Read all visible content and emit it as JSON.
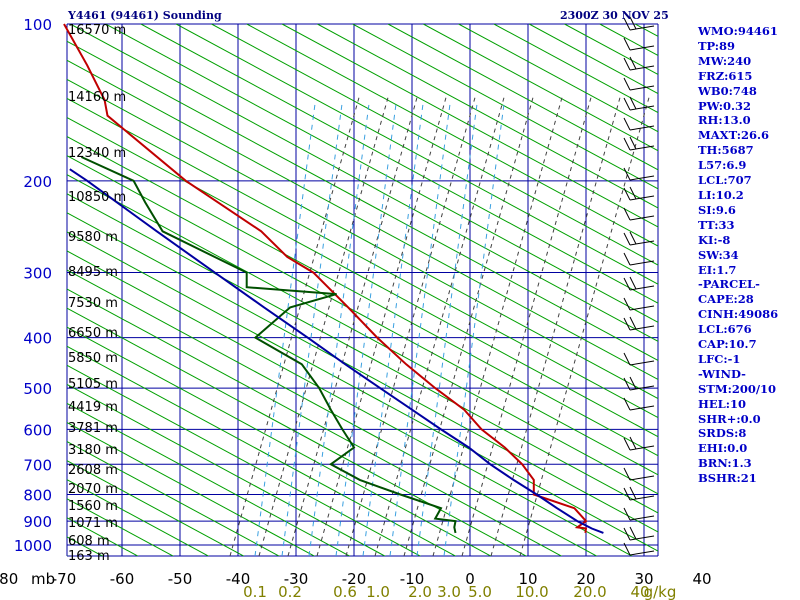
{
  "header": {
    "station_title": "Y4461 (94461) Sounding",
    "valid_time": "2300Z 30 NOV 25"
  },
  "chart_data": {
    "type": "line",
    "title": "Y4461 (94461) Sounding",
    "subtitle": "2300Z 30 NOV 25",
    "pressure_axis_label": "mb",
    "pressure_levels": [
      100,
      200,
      300,
      400,
      500,
      600,
      700,
      800,
      900,
      1000
    ],
    "temperature_ticks": [
      -80,
      -70,
      -60,
      -50,
      -40,
      -30,
      -20,
      -10,
      0,
      10,
      20,
      30,
      40
    ],
    "mixing_ratio_labels": [
      "0.1",
      "0.2",
      "0.6",
      "1.0",
      "2.0",
      "3.0",
      "5.0",
      "10.0",
      "20.0",
      "40",
      "g/kg"
    ],
    "height_labels": [
      "16570 m",
      "14160 m",
      "12340 m",
      "10850 m",
      "9580 m",
      "8495 m",
      "7530 m",
      "6650 m",
      "5850 m",
      "5105 m",
      "4419 m",
      "3781 m",
      "3180 m",
      "2608 m",
      "2070 m",
      "1560 m",
      "1071 m",
      "608 m",
      "163 m"
    ],
    "series": [
      {
        "color": "#c00000",
        "points": [
          [
            948,
            19.9
          ],
          [
            930,
            20.0
          ],
          [
            925,
            18.5
          ],
          [
            900,
            20.0
          ],
          [
            850,
            18.0
          ],
          [
            800,
            11.0
          ],
          [
            750,
            11.0
          ],
          [
            700,
            9.0
          ],
          [
            650,
            6.0
          ],
          [
            600,
            2.0
          ],
          [
            550,
            -1.0
          ],
          [
            500,
            -6.0
          ],
          [
            450,
            -11.0
          ],
          [
            400,
            -16.0
          ],
          [
            350,
            -21.0
          ],
          [
            300,
            -27.0
          ],
          [
            280,
            -31.5
          ],
          [
            250,
            -36.0
          ],
          [
            200,
            -49.0
          ],
          [
            150,
            -62.5
          ],
          [
            140,
            -63.0
          ],
          [
            120,
            -66.0
          ],
          [
            100,
            -70.0
          ]
        ]
      },
      {
        "color": "#005000",
        "points": [
          [
            948,
            -2.5
          ],
          [
            925,
            -2.7
          ],
          [
            900,
            -2.5
          ],
          [
            890,
            -6.0
          ],
          [
            850,
            -5.0
          ],
          [
            800,
            -12.0
          ],
          [
            750,
            -19.0
          ],
          [
            700,
            -24.0
          ],
          [
            650,
            -20.0
          ],
          [
            600,
            -22.0
          ],
          [
            550,
            -24.0
          ],
          [
            500,
            -26.0
          ],
          [
            450,
            -29.0
          ],
          [
            400,
            -37.0
          ],
          [
            350,
            -31.0
          ],
          [
            330,
            -23.0
          ],
          [
            320,
            -38.5
          ],
          [
            300,
            -38.5
          ],
          [
            280,
            -44.0
          ],
          [
            250,
            -53.0
          ],
          [
            220,
            -56.0
          ],
          [
            200,
            -58.0
          ],
          [
            180,
            -67.0
          ]
        ]
      },
      {
        "color": "#0000a0",
        "points": [
          [
            948,
            23.0
          ],
          [
            930,
            21.0
          ],
          [
            900,
            18.5
          ],
          [
            850,
            15.0
          ],
          [
            800,
            11.5
          ],
          [
            750,
            7.5
          ],
          [
            700,
            3.5
          ],
          [
            650,
            -0.2
          ],
          [
            600,
            -5.0
          ],
          [
            550,
            -10.0
          ],
          [
            500,
            -15.5
          ],
          [
            450,
            -21.5
          ],
          [
            400,
            -28.0
          ],
          [
            350,
            -35.5
          ],
          [
            300,
            -44.0
          ],
          [
            250,
            -54.0
          ],
          [
            200,
            -66.0
          ],
          [
            190,
            -69.0
          ]
        ]
      }
    ]
  },
  "sidebar": {
    "items": [
      "WMO:94461",
      "TP:89",
      "MW:240",
      "FRZ:615",
      "WB0:748",
      "PW:0.32",
      "RH:13.0",
      "MAXT:26.6",
      "TH:5687",
      "L57:6.9",
      "LCL:707",
      "LI:10.2",
      "SI:9.6",
      "TT:33",
      "KI:-8",
      "SW:34",
      "EI:1.7",
      "-PARCEL-",
      "CAPE:28",
      "CINH:49086",
      "LCL:676",
      "CAP:10.7",
      "LFC:-1",
      "-WIND-",
      "STM:200/10",
      "HEL:10",
      "SHR+:0.0",
      "SRDS:8",
      "EHI:0.0",
      "BRN:1.3",
      "BSHR:21"
    ]
  },
  "colors": {
    "grid": "#0000a0",
    "dry_adiabat": "#00a000",
    "moist_adiabat": "#404040",
    "mixing_ratio": "#3aa0e0",
    "temperature": "#c00000",
    "dewpoint": "#005000",
    "parcel": "#0000a0",
    "pressure_label": "#0000c8",
    "temp_label": "#000000",
    "mixing_label": "#808000",
    "height_label": "#000000",
    "sidebar_text": "#0000c8"
  }
}
